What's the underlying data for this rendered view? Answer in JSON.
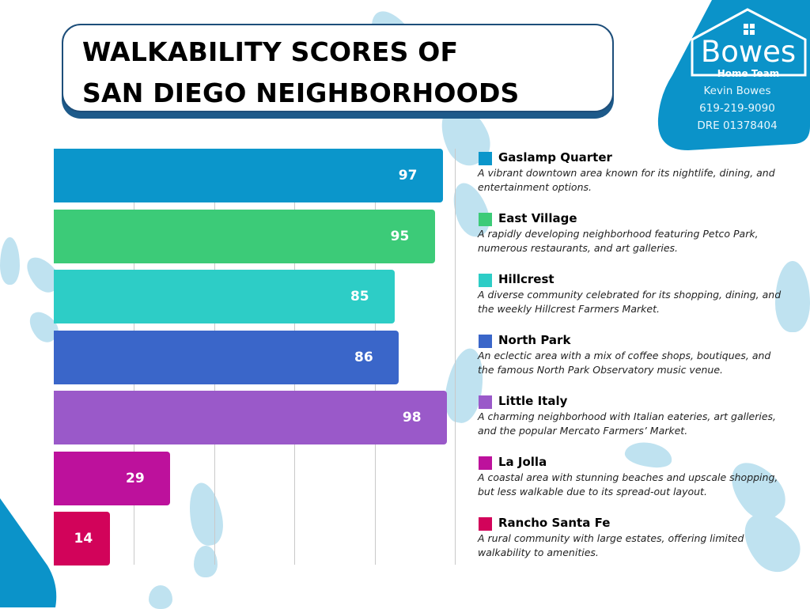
{
  "title": {
    "line1": "WALKABILITY SCORES OF",
    "line2": "SAN DIEGO NEIGHBORHOODS"
  },
  "brand": {
    "name": "Bowes",
    "subtitle": "Home Team",
    "agent": "Kevin Bowes",
    "phone": "619-219-9090",
    "license": "DRE 01378404",
    "color": "#0b93c9"
  },
  "chart_data": {
    "type": "bar",
    "orientation": "horizontal",
    "title": "WALKABILITY SCORES OF SAN DIEGO NEIGHBORHOODS",
    "xlabel": "",
    "ylabel": "",
    "xlim": [
      0,
      100
    ],
    "grid": true,
    "grid_step": 20,
    "legend_position": "right",
    "categories": [
      "Gaslamp Quarter",
      "East Village",
      "Hillcrest",
      "North Park",
      "Little Italy",
      "La Jolla",
      "Rancho Santa Fe"
    ],
    "values": [
      97,
      95,
      85,
      86,
      98,
      29,
      14
    ],
    "colors": [
      "#0b96cb",
      "#3ccb78",
      "#2dcdc6",
      "#3a66c9",
      "#9a59c9",
      "#bd119c",
      "#d2035a"
    ],
    "legend": [
      {
        "name": "Gaslamp Quarter",
        "description": "A vibrant downtown area known for its nightlife, dining, and entertainment options."
      },
      {
        "name": "East Village",
        "description": "A rapidly developing neighborhood featuring Petco Park, numerous restaurants, and art galleries."
      },
      {
        "name": "Hillcrest",
        "description": "A diverse community celebrated for its shopping, dining, and the weekly Hillcrest Farmers Market."
      },
      {
        "name": "North Park",
        "description": "An eclectic area with a mix of coffee shops, boutiques, and the famous North Park Observatory music venue."
      },
      {
        "name": "Little Italy",
        "description": "A charming neighborhood with Italian eateries, art galleries, and the popular Mercato Farmers’ Market."
      },
      {
        "name": "La Jolla",
        "description": "A coastal area with stunning beaches and upscale shopping, but less walkable due to its spread-out layout."
      },
      {
        "name": "Rancho Santa Fe",
        "description": "A rural community with large estates, offering limited walkability to amenities."
      }
    ]
  }
}
